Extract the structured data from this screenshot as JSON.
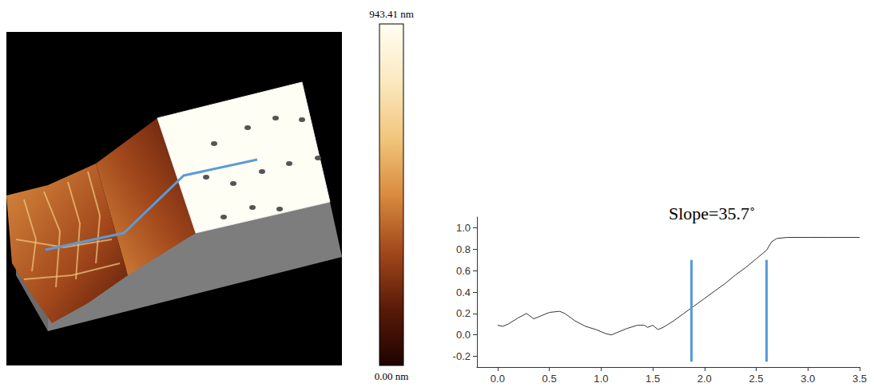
{
  "chart_data": {
    "type": "line",
    "x": [
      0,
      0.05,
      0.1,
      0.2,
      0.28,
      0.35,
      0.4,
      0.5,
      0.6,
      0.65,
      0.75,
      0.85,
      0.95,
      1.05,
      1.1,
      1.15,
      1.25,
      1.35,
      1.42,
      1.45,
      1.5,
      1.55,
      1.6,
      1.7,
      1.8,
      1.9,
      2.0,
      2.1,
      2.2,
      2.3,
      2.4,
      2.5,
      2.6,
      2.65,
      2.7,
      2.8,
      3.0,
      3.2,
      3.5
    ],
    "values": [
      0.09,
      0.08,
      0.1,
      0.16,
      0.2,
      0.15,
      0.17,
      0.21,
      0.22,
      0.2,
      0.13,
      0.08,
      0.05,
      0.01,
      0.0,
      0.02,
      0.06,
      0.09,
      0.09,
      0.07,
      0.09,
      0.05,
      0.07,
      0.13,
      0.2,
      0.27,
      0.34,
      0.41,
      0.48,
      0.56,
      0.63,
      0.71,
      0.79,
      0.87,
      0.9,
      0.91,
      0.91,
      0.91,
      0.91
    ],
    "color": "#333333",
    "xlim": [
      -0.2,
      3.5
    ],
    "xticks": [
      {
        "value": 0,
        "label": "0.0"
      },
      0.5,
      {
        "value": 1,
        "label": "1.0"
      },
      1.5,
      {
        "value": 2,
        "label": "2.0"
      },
      2.5,
      {
        "value": 3,
        "label": "3.0"
      },
      3.5
    ],
    "ylim": [
      -0.3,
      1.1
    ],
    "yticks": [
      -0.2,
      {
        "value": 0,
        "label": "0.0"
      },
      0.2,
      0.4,
      0.6,
      0.8,
      {
        "value": 1,
        "label": "1.0"
      }
    ],
    "annotations": [
      "Slope=35.7˚"
    ],
    "markers": {
      "x": [
        1.87,
        2.6
      ],
      "y": [
        -0.25,
        0.7
      ],
      "color": "#5b9bd5"
    },
    "grid": false
  },
  "colorbar": {
    "range": [
      0,
      943.41
    ],
    "ticks": [
      {
        "value": 0,
        "label": "0.00 nm"
      },
      {
        "value": 943.41,
        "label": "943.41 nm"
      }
    ],
    "colors": [
      "#1e0300",
      "#5a1a08",
      "#a2481c",
      "#d98b3e",
      "#f2c67e",
      "#fbe9c0",
      "#fffef4"
    ]
  }
}
